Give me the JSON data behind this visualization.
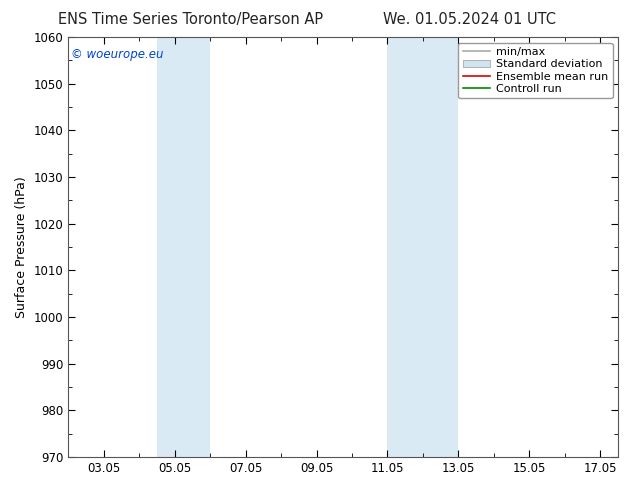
{
  "title_left": "ENS Time Series Toronto/Pearson AP",
  "title_right": "We. 01.05.2024 01 UTC",
  "ylabel": "Surface Pressure (hPa)",
  "ylim": [
    970,
    1060
  ],
  "yticks": [
    970,
    980,
    990,
    1000,
    1010,
    1020,
    1030,
    1040,
    1050,
    1060
  ],
  "xlim": [
    2.0,
    17.5
  ],
  "xtick_labels": [
    "03.05",
    "05.05",
    "07.05",
    "09.05",
    "11.05",
    "13.05",
    "15.05",
    "17.05"
  ],
  "xtick_positions": [
    3,
    5,
    7,
    9,
    11,
    13,
    15,
    17
  ],
  "shaded_bands": [
    {
      "x_start": 4.5,
      "x_end": 6.0,
      "color": "#daeaf5"
    },
    {
      "x_start": 11.0,
      "x_end": 13.0,
      "color": "#daeaf5"
    }
  ],
  "legend_items": [
    {
      "label": "min/max",
      "color": "#aaaaaa",
      "linewidth": 1.2,
      "linestyle": "-"
    },
    {
      "label": "Standard deviation",
      "color": "#d0e4f0",
      "linewidth": 6,
      "linestyle": "-"
    },
    {
      "label": "Ensemble mean run",
      "color": "#dd0000",
      "linewidth": 1.2,
      "linestyle": "-"
    },
    {
      "label": "Controll run",
      "color": "#008800",
      "linewidth": 1.2,
      "linestyle": "-"
    }
  ],
  "copyright_text": "© woeurope.eu",
  "copyright_color": "#0044cc",
  "background_color": "#ffffff",
  "plot_bg_color": "#ffffff",
  "spine_color": "#555555",
  "title_fontsize": 10.5,
  "ylabel_fontsize": 9,
  "tick_fontsize": 8.5,
  "legend_fontsize": 8
}
